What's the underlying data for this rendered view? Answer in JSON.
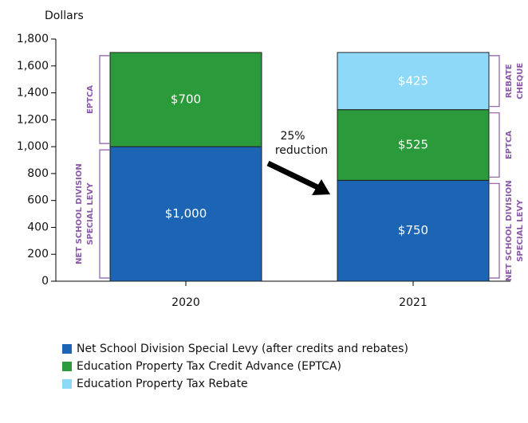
{
  "chart_data": {
    "type": "stacked_bar",
    "y_axis_label": "Dollars",
    "categories": [
      "2020",
      "2021"
    ],
    "series": [
      {
        "name": "Net School Division Special Levy (after credits and rebates)",
        "color": "#1c64b4",
        "values": [
          1000,
          750
        ],
        "value_labels": [
          "$1,000",
          "$750"
        ],
        "bracket_label": [
          "NET SCHOOL DIVISION",
          "SPECIAL LEVY"
        ]
      },
      {
        "name": "Education Property Tax Credit Advance (EPTCA)",
        "color": "#2a9a3a",
        "values": [
          700,
          525
        ],
        "value_labels": [
          "$700",
          "$525"
        ],
        "bracket_label": [
          "EPTCA"
        ]
      },
      {
        "name": "Education Property Tax Rebate",
        "color": "#8ed8f8",
        "values": [
          null,
          425
        ],
        "value_labels": [
          null,
          "$425"
        ],
        "bracket_label": [
          "REBATE",
          "CHEQUE"
        ]
      }
    ],
    "annotation": [
      "25%",
      "reduction"
    ],
    "ylim": [
      0,
      1800
    ],
    "yticks": [
      0,
      200,
      400,
      600,
      800,
      {
        "value": 1000,
        "label": "1,000"
      },
      {
        "value": 1200,
        "label": "1,200"
      },
      {
        "value": 1400,
        "label": "1,400"
      },
      {
        "value": 1600,
        "label": "1,600"
      },
      {
        "value": 1800,
        "label": "1,800"
      }
    ]
  }
}
